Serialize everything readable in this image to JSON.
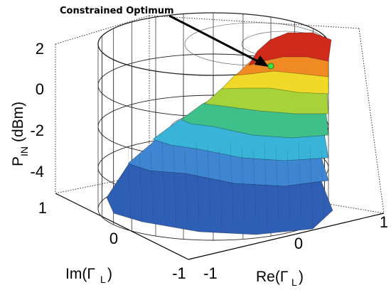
{
  "chart_data": {
    "type": "surface3d",
    "annotation": "Constrained Optimum",
    "zlabel": {
      "main": "P",
      "sub": "IN",
      "unit": " (dBm)"
    },
    "xlabel": {
      "main": "Re(Γ",
      "sub": "L",
      "close": ")"
    },
    "ylabel": {
      "main": "Im(Γ",
      "sub": "L",
      "close": ")"
    },
    "zlim": [
      -5.5,
      2.5
    ],
    "zticks": [
      "2",
      "0",
      "-2",
      "-4"
    ],
    "re_ticks": [
      "-1",
      "0",
      "1"
    ],
    "im_ticks": [
      "1",
      "0",
      "-1"
    ],
    "grid": true,
    "colormap": "jet",
    "constrained_optimum": {
      "re": 0.35,
      "im": 0.6,
      "p_in_dbm": 1.3
    },
    "surface_levels_dbm": [
      -5,
      -4,
      -3,
      -2,
      -1,
      0,
      1,
      2
    ],
    "colors": {
      "level_-5": "#2f5fb4",
      "level_-4": "#3f86d2",
      "level_-3": "#39b3d8",
      "level_-2": "#3fc08a",
      "level_-1": "#a6d23a",
      "level_0": "#f1d92a",
      "level_1": "#f08a22",
      "level_2": "#cf2a1c",
      "optimum_marker": "#3adf4a"
    }
  }
}
